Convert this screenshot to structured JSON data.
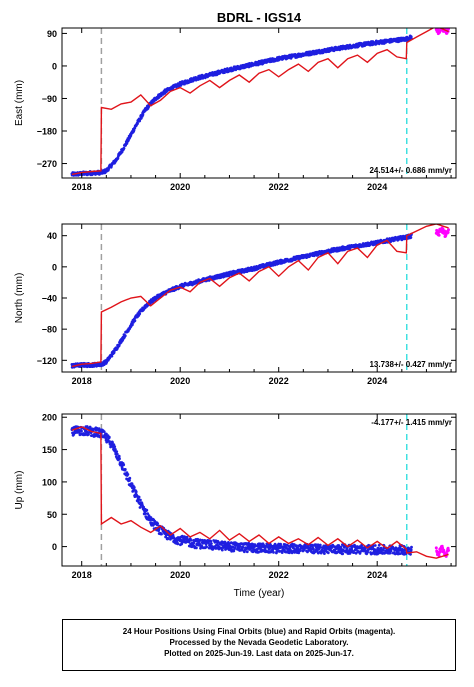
{
  "title": "BDRL - IGS14",
  "xlabel": "Time (year)",
  "footer": {
    "line1": "24 Hour Positions Using Final Orbits (blue) and Rapid Orbits (magenta).",
    "line2": "Processed by the Nevada Geodetic Laboratory.",
    "line3": "Plotted on 2025-Jun-19. Last data on 2025-Jun-17."
  },
  "colors": {
    "final_orbits": "#1f1fe0",
    "rapid_orbits": "#ff00ff",
    "model": "#e0141a",
    "equipment_change": "#a0a0a0",
    "last_final": "#40e0e0"
  },
  "chart_data": [
    {
      "type": "scatter",
      "ylabel": "East (mm)",
      "xlim": [
        2017.6,
        2025.6
      ],
      "ylim": [
        -310,
        105
      ],
      "xticks": [
        2018,
        2020,
        2022,
        2024
      ],
      "xtick_labels": [
        "2018",
        "2020",
        "2022",
        "2024"
      ],
      "yticks": [
        -270,
        -180,
        -90,
        0,
        90
      ],
      "ytick_labels": [
        "−270",
        "−180",
        "−90",
        "0",
        "90"
      ],
      "rate_label": "24.514+/- 0.686 mm/yr",
      "rate_position": "bottom-right",
      "vlines": {
        "equipment_change": 2018.4,
        "last_final": 2024.6
      },
      "final_series": {
        "name": "Final Orbits",
        "x": [
          2017.8,
          2018.0,
          2018.2,
          2018.4,
          2018.5,
          2018.7,
          2018.9,
          2019.1,
          2019.3,
          2019.5,
          2019.7,
          2020.0,
          2020.3,
          2020.6,
          2021.0,
          2021.5,
          2022.0,
          2022.5,
          2023.0,
          2023.5,
          2024.0,
          2024.3,
          2024.6,
          2024.7
        ],
        "y": [
          -300,
          -298,
          -296,
          -295,
          -290,
          -260,
          -215,
          -165,
          -120,
          -90,
          -70,
          -50,
          -35,
          -25,
          -10,
          5,
          20,
          32,
          44,
          55,
          65,
          70,
          75,
          80
        ]
      },
      "rapid_series": {
        "name": "Rapid Orbits",
        "x": [
          2025.2,
          2025.25,
          2025.3,
          2025.35,
          2025.4,
          2025.45
        ],
        "y": [
          100,
          95,
          103,
          98,
          94,
          100
        ]
      },
      "model": {
        "x": [
          2017.8,
          2018.0,
          2018.2,
          2018.39,
          2018.4,
          2018.6,
          2018.8,
          2019.0,
          2019.2,
          2019.4,
          2019.6,
          2019.8,
          2020.0,
          2020.2,
          2020.4,
          2020.6,
          2020.8,
          2021.0,
          2021.2,
          2021.4,
          2021.6,
          2021.8,
          2022.0,
          2022.2,
          2022.4,
          2022.6,
          2022.8,
          2023.0,
          2023.2,
          2023.4,
          2023.6,
          2023.8,
          2024.0,
          2024.2,
          2024.4,
          2024.59,
          2024.6,
          2024.8,
          2025.0,
          2025.2,
          2025.45
        ],
        "y": [
          -300,
          -295,
          -292,
          -290,
          -115,
          -120,
          -105,
          -100,
          -80,
          -110,
          -95,
          -70,
          -60,
          -75,
          -55,
          -40,
          -60,
          -40,
          -25,
          -45,
          -20,
          -10,
          -30,
          -10,
          5,
          -15,
          10,
          20,
          -5,
          20,
          30,
          10,
          35,
          45,
          25,
          20,
          65,
          80,
          95,
          110,
          95
        ]
      }
    },
    {
      "type": "scatter",
      "ylabel": "North (mm)",
      "xlim": [
        2017.6,
        2025.6
      ],
      "ylim": [
        -135,
        55
      ],
      "xticks": [
        2018,
        2020,
        2022,
        2024
      ],
      "xtick_labels": [
        "2018",
        "2020",
        "2022",
        "2024"
      ],
      "yticks": [
        -120,
        -80,
        -40,
        0,
        40
      ],
      "ytick_labels": [
        "−120",
        "−80",
        "−40",
        "0",
        "40"
      ],
      "rate_label": "13.738+/- 0.427 mm/yr",
      "rate_position": "bottom-right",
      "vlines": {
        "equipment_change": 2018.4,
        "last_final": 2024.6
      },
      "final_series": {
        "name": "Final Orbits",
        "x": [
          2017.8,
          2018.0,
          2018.2,
          2018.4,
          2018.5,
          2018.7,
          2018.9,
          2019.1,
          2019.3,
          2019.5,
          2019.7,
          2020.0,
          2020.3,
          2020.6,
          2021.0,
          2021.5,
          2022.0,
          2022.5,
          2023.0,
          2023.5,
          2024.0,
          2024.3,
          2024.6,
          2024.7
        ],
        "y": [
          -127,
          -126,
          -126,
          -125,
          -122,
          -105,
          -85,
          -65,
          -50,
          -40,
          -33,
          -25,
          -20,
          -15,
          -9,
          -2,
          6,
          13,
          20,
          26,
          31,
          35,
          38,
          40
        ]
      },
      "rapid_series": {
        "name": "Rapid Orbits",
        "x": [
          2025.2,
          2025.25,
          2025.3,
          2025.35,
          2025.4,
          2025.45
        ],
        "y": [
          46,
          42,
          50,
          44,
          40,
          47
        ]
      },
      "model": {
        "x": [
          2017.8,
          2018.0,
          2018.2,
          2018.39,
          2018.4,
          2018.6,
          2018.8,
          2019.0,
          2019.2,
          2019.4,
          2019.6,
          2019.8,
          2020.0,
          2020.2,
          2020.4,
          2020.6,
          2020.8,
          2021.0,
          2021.2,
          2021.4,
          2021.6,
          2021.8,
          2022.0,
          2022.2,
          2022.4,
          2022.6,
          2022.8,
          2023.0,
          2023.2,
          2023.4,
          2023.6,
          2023.8,
          2024.0,
          2024.2,
          2024.4,
          2024.59,
          2024.6,
          2024.8,
          2025.0,
          2025.2,
          2025.45
        ],
        "y": [
          -128,
          -125,
          -124,
          -122,
          -58,
          -52,
          -45,
          -40,
          -38,
          -50,
          -40,
          -30,
          -26,
          -32,
          -20,
          -15,
          -25,
          -14,
          -8,
          -18,
          -6,
          0,
          -12,
          0,
          8,
          -4,
          12,
          18,
          4,
          20,
          24,
          12,
          28,
          34,
          20,
          18,
          40,
          46,
          52,
          55,
          50
        ]
      }
    },
    {
      "type": "scatter",
      "ylabel": "Up (mm)",
      "xlim": [
        2017.6,
        2025.6
      ],
      "ylim": [
        -30,
        205
      ],
      "xticks": [
        2018,
        2020,
        2022,
        2024
      ],
      "xtick_labels": [
        "2018",
        "2020",
        "2022",
        "2024"
      ],
      "yticks": [
        0,
        50,
        100,
        150,
        200
      ],
      "ytick_labels": [
        "0",
        "50",
        "100",
        "150",
        "200"
      ],
      "rate_label": "-4.177+/- 1.415 mm/yr",
      "rate_position": "top-right",
      "vlines": {
        "equipment_change": 2018.4,
        "last_final": 2024.6
      },
      "final_series": {
        "name": "Final Orbits",
        "x": [
          2017.8,
          2018.0,
          2018.2,
          2018.4,
          2018.6,
          2018.8,
          2019.0,
          2019.2,
          2019.4,
          2019.6,
          2019.8,
          2020.0,
          2020.3,
          2020.6,
          2021.0,
          2021.5,
          2022.0,
          2022.5,
          2023.0,
          2023.5,
          2024.0,
          2024.3,
          2024.6,
          2024.7
        ],
        "y": [
          178,
          180,
          178,
          175,
          160,
          130,
          95,
          65,
          40,
          25,
          15,
          10,
          5,
          3,
          0,
          -2,
          -3,
          -3,
          -4,
          -4,
          -5,
          -5,
          -5,
          -5
        ]
      },
      "rapid_series": {
        "name": "Rapid Orbits",
        "x": [
          2025.2,
          2025.25,
          2025.3,
          2025.35,
          2025.4,
          2025.45
        ],
        "y": [
          -5,
          -12,
          0,
          -8,
          -15,
          -3
        ]
      },
      "model": {
        "x": [
          2017.8,
          2018.0,
          2018.2,
          2018.39,
          2018.4,
          2018.6,
          2018.8,
          2019.0,
          2019.2,
          2019.4,
          2019.6,
          2019.8,
          2020.0,
          2020.2,
          2020.4,
          2020.6,
          2020.8,
          2021.0,
          2021.2,
          2021.4,
          2021.6,
          2021.8,
          2022.0,
          2022.2,
          2022.4,
          2022.6,
          2022.8,
          2023.0,
          2023.2,
          2023.4,
          2023.6,
          2023.8,
          2024.0,
          2024.2,
          2024.4,
          2024.59,
          2024.6,
          2024.8,
          2025.0,
          2025.2,
          2025.45
        ],
        "y": [
          180,
          185,
          178,
          175,
          35,
          45,
          35,
          40,
          30,
          22,
          32,
          18,
          28,
          15,
          22,
          12,
          25,
          10,
          20,
          8,
          18,
          5,
          15,
          5,
          12,
          3,
          14,
          2,
          12,
          0,
          10,
          -2,
          8,
          -3,
          8,
          -4,
          -10,
          -8,
          -15,
          -18,
          -12
        ]
      }
    }
  ]
}
